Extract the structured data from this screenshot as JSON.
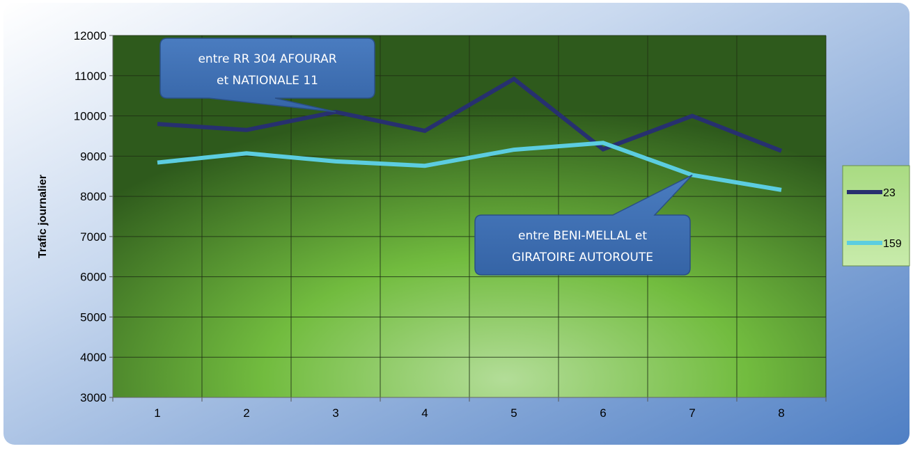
{
  "chart_data": {
    "type": "line",
    "ylabel": "Trafic journalier",
    "xlabel": "",
    "categories": [
      "1",
      "2",
      "3",
      "4",
      "5",
      "6",
      "7",
      "8"
    ],
    "ylim": [
      3000,
      12000
    ],
    "yticks": [
      3000,
      4000,
      5000,
      6000,
      7000,
      8000,
      9000,
      10000,
      11000,
      12000
    ],
    "grid": true,
    "legend_placement": "right",
    "series": [
      {
        "name": "23",
        "color": "#27306f",
        "values": [
          9800,
          9650,
          10100,
          9630,
          10920,
          9170,
          10000,
          9130
        ]
      },
      {
        "name": "159",
        "color": "#5ccde0",
        "values": [
          8840,
          9070,
          8870,
          8760,
          9160,
          9330,
          8530,
          8160
        ]
      }
    ],
    "annotations": [
      {
        "line1": "entre RR 304 AFOURAR",
        "line2": "et NATIONALE 11",
        "target_x": 3,
        "target_y": 10100
      },
      {
        "line1": "entre BENI-MELLAL  et",
        "line2": "GIRATOIRE AUTOROUTE",
        "target_x": 7,
        "target_y": 8530
      }
    ],
    "colors": {
      "frame_gradient": [
        "#ffffff",
        "#4f7fc4"
      ],
      "plot_center": "#a8d98a",
      "plot_mid": "#6fba3e",
      "plot_edge": "#2e5a1c",
      "callout_fill": "#3f6fb0",
      "callout_stroke": "#2a4f86",
      "legend_fill": "#b9e39a"
    }
  }
}
